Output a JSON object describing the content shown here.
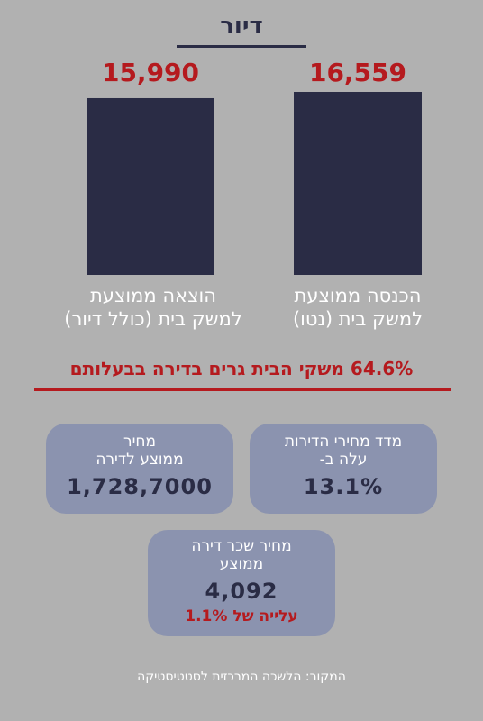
{
  "title": "דיור",
  "chart_data": {
    "type": "bar",
    "categories": [
      "הכנסה ממוצעת למשק בית (נטו)",
      "הוצאה ממוצעת למשק בית (כולל דיור)"
    ],
    "values": [
      16559,
      15990
    ],
    "value_labels": [
      "16,559",
      "15,990"
    ],
    "ylim": [
      0,
      16559
    ],
    "colors": {
      "bar": "#2a2c45",
      "value": "#b51a1e"
    }
  },
  "labels": {
    "income_line1": "הכנסה ממוצעת",
    "income_line2": "למשק בית (נטו)",
    "expense_line1": "הוצאה ממוצעת",
    "expense_line2": "למשק בית (כולל דיור)"
  },
  "stat": "64.6% משקי הבית גרים בדירה בבעלותם",
  "cards": {
    "index": {
      "line1": "מדד מחירי הדירות",
      "line2": "עלה ב-",
      "value": "13.1%"
    },
    "price": {
      "line1": "מחיר",
      "line2": "ממוצע לדירה",
      "value": "1,728,7000"
    },
    "rent": {
      "line1": "מחיר שכר דירה",
      "line2": "ממוצע",
      "value": "4,092",
      "note": "עלייה של 1.1%"
    }
  },
  "source": "המקור: הלשכה המרכזית לסטטיסטיקה"
}
